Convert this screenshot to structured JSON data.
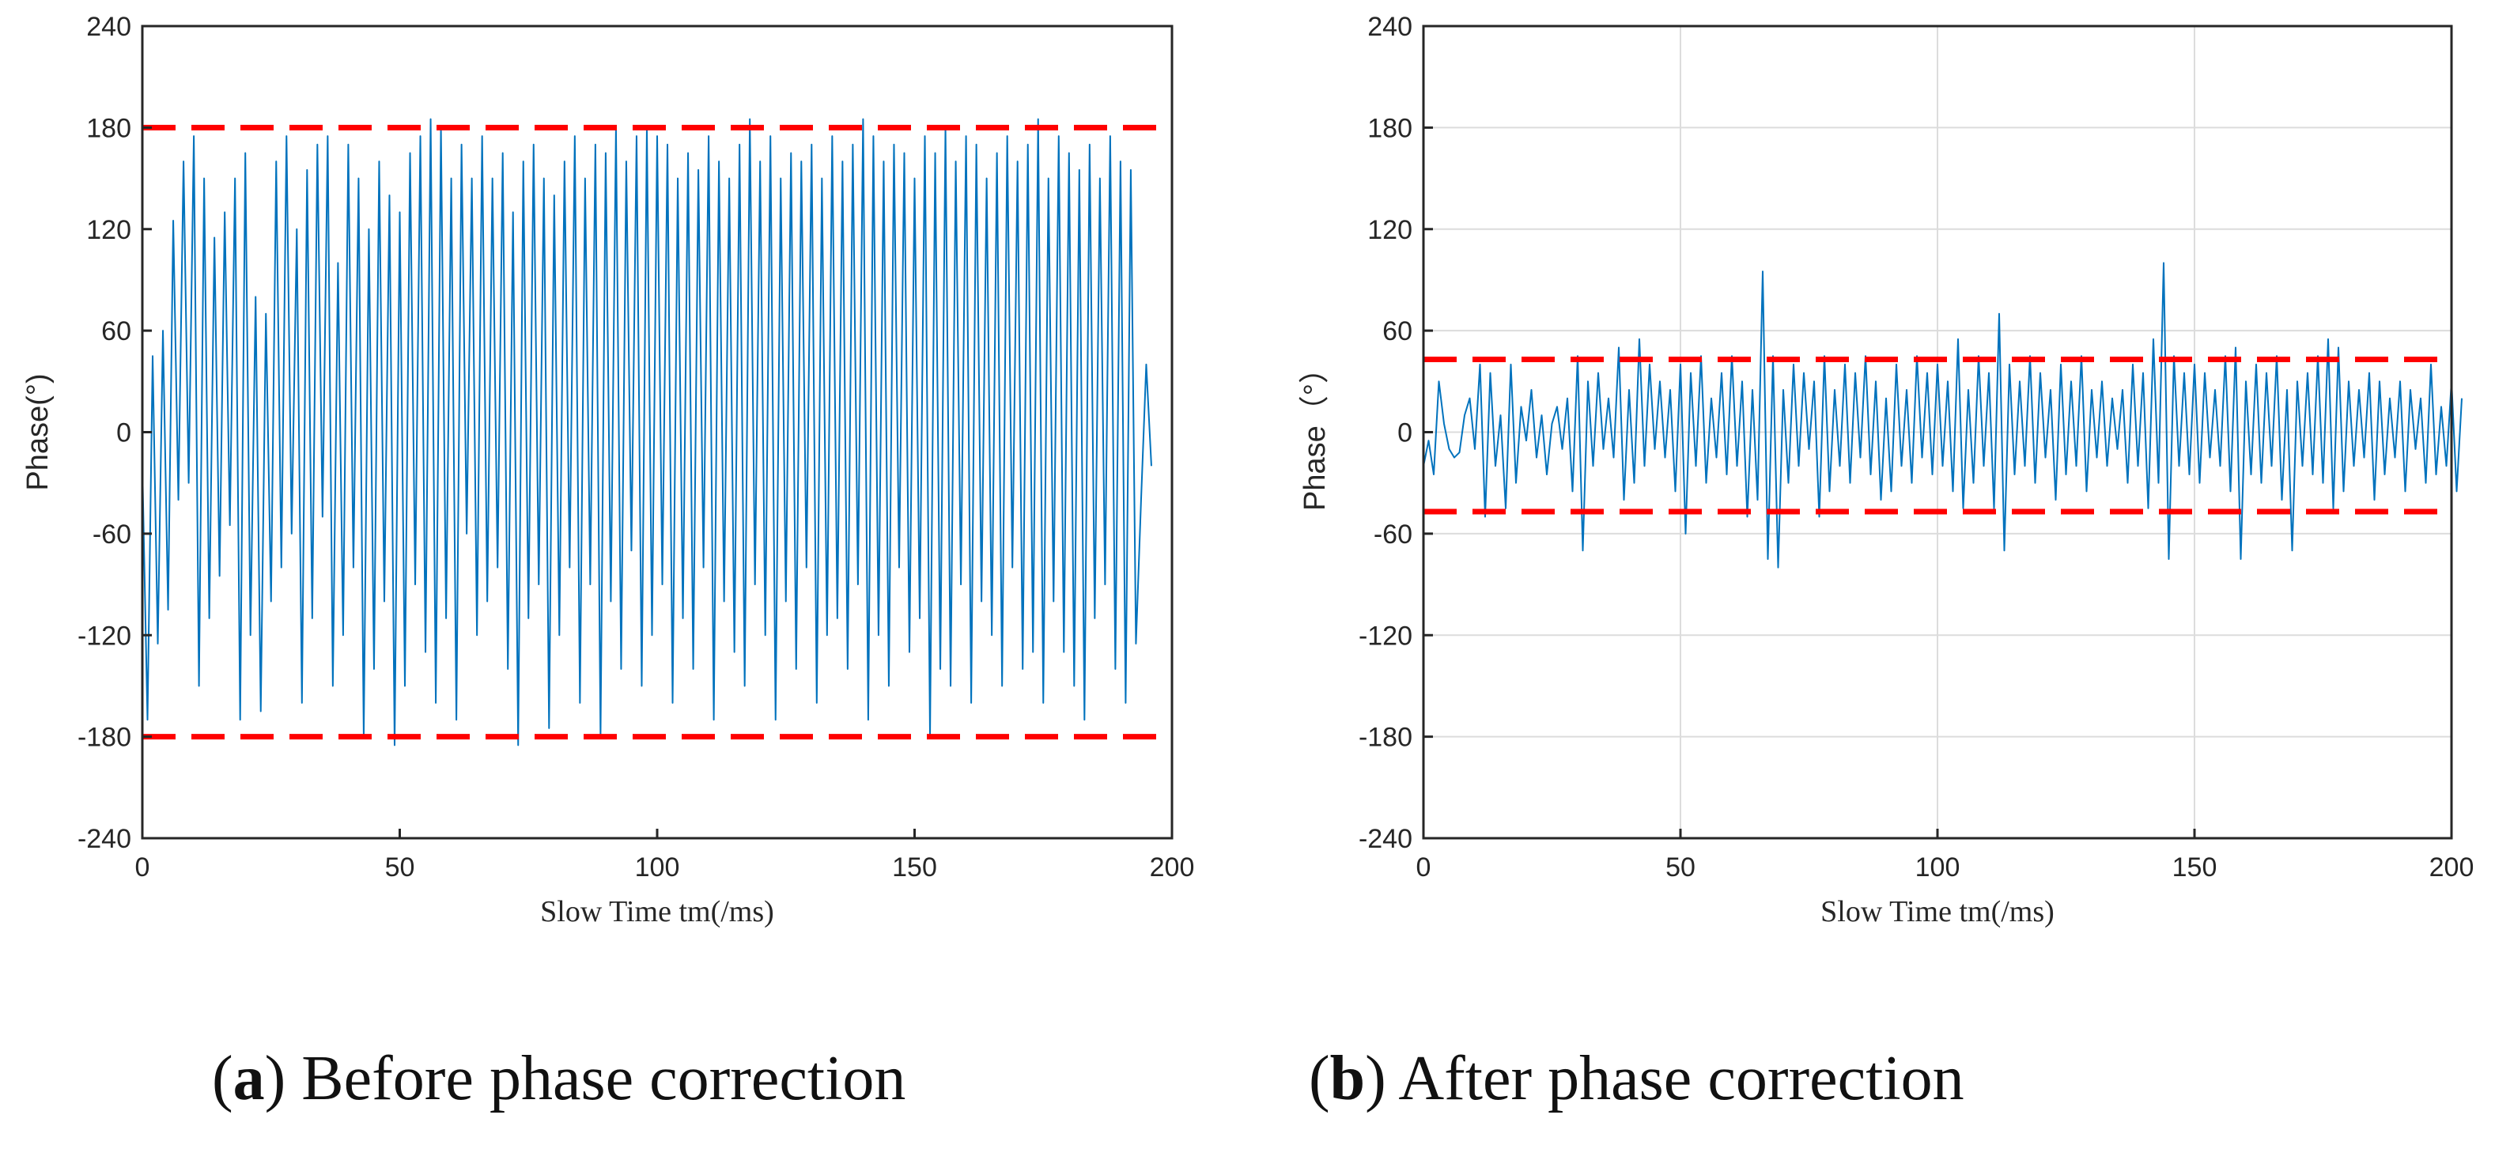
{
  "chart_data": [
    {
      "type": "line",
      "panel": "a",
      "caption_letter": "a",
      "caption_text": "Before phase correction",
      "xlabel": "Slow Time tm(/ms)",
      "ylabel": "Phase(°)",
      "xlim": [
        0,
        200
      ],
      "ylim": [
        -240,
        240
      ],
      "xticks": [
        0,
        50,
        100,
        150,
        200
      ],
      "yticks": [
        240,
        180,
        120,
        60,
        0,
        -60,
        -120,
        -180,
        -240
      ],
      "grid": false,
      "series": [
        {
          "name": "phase",
          "color": "#0072BD",
          "x_step": 1,
          "values": [
            -20,
            -170,
            45,
            -125,
            60,
            -105,
            125,
            -40,
            160,
            -30,
            175,
            -150,
            150,
            -110,
            115,
            -85,
            130,
            -55,
            150,
            -170,
            165,
            -120,
            80,
            -165,
            70,
            -100,
            160,
            -80,
            175,
            -60,
            120,
            -160,
            155,
            -110,
            170,
            -50,
            175,
            -150,
            100,
            -120,
            170,
            -80,
            150,
            -180,
            120,
            -140,
            160,
            -100,
            140,
            -185,
            130,
            -150,
            165,
            -90,
            175,
            -130,
            185,
            -160,
            180,
            -110,
            150,
            -170,
            170,
            -60,
            150,
            -120,
            175,
            -100,
            150,
            -80,
            165,
            -140,
            130,
            -185,
            160,
            -110,
            170,
            -90,
            150,
            -175,
            140,
            -120,
            160,
            -80,
            175,
            -160,
            150,
            -90,
            170,
            -180,
            165,
            -100,
            180,
            -140,
            160,
            -70,
            175,
            -150,
            180,
            -120,
            175,
            -90,
            170,
            -160,
            150,
            -110,
            165,
            -140,
            155,
            -80,
            175,
            -170,
            160,
            -100,
            150,
            -130,
            170,
            -150,
            185,
            -90,
            160,
            -120,
            175,
            -170,
            150,
            -100,
            165,
            -140,
            160,
            -80,
            170,
            -160,
            150,
            -120,
            175,
            -110,
            160,
            -140,
            170,
            -90,
            185,
            -170,
            175,
            -120,
            160,
            -150,
            170,
            -80,
            165,
            -130,
            150,
            -110,
            175,
            -180,
            165,
            -140,
            180,
            -150,
            160,
            -90,
            175,
            -160,
            170,
            -100,
            150,
            -120,
            165,
            -150,
            175,
            -80,
            160,
            -140,
            170,
            -130,
            185,
            -160,
            150,
            -100,
            175,
            -130,
            165,
            -150,
            155,
            -170,
            170,
            -110,
            150,
            -90,
            175,
            -140,
            160,
            -160,
            155,
            -125,
            -40,
            40,
            -20
          ]
        },
        {
          "name": "upper bound",
          "color": "#FF0000",
          "style": "dashed",
          "y": 180
        },
        {
          "name": "lower bound",
          "color": "#FF0000",
          "style": "dashed",
          "y": -180
        }
      ]
    },
    {
      "type": "line",
      "panel": "b",
      "caption_letter": "b",
      "caption_text": "After phase correction",
      "xlabel": "Slow Time tm(/ms)",
      "ylabel": "Phase（°）",
      "xlim": [
        0,
        200
      ],
      "ylim": [
        -240,
        240
      ],
      "xticks": [
        0,
        50,
        100,
        150,
        200
      ],
      "yticks": [
        240,
        180,
        120,
        60,
        0,
        -60,
        -120,
        -180,
        -240
      ],
      "grid": true,
      "series": [
        {
          "name": "phase",
          "color": "#0072BD",
          "x_step": 1,
          "values": [
            -20,
            -5,
            -25,
            30,
            5,
            -10,
            -15,
            -12,
            10,
            20,
            -10,
            40,
            -50,
            35,
            -20,
            10,
            -45,
            40,
            -30,
            15,
            -5,
            25,
            -15,
            10,
            -25,
            5,
            15,
            -10,
            20,
            -35,
            45,
            -70,
            30,
            -20,
            35,
            -10,
            20,
            -15,
            50,
            -40,
            25,
            -30,
            55,
            -20,
            40,
            -10,
            30,
            -15,
            25,
            -35,
            40,
            -60,
            35,
            -20,
            45,
            -30,
            20,
            -15,
            35,
            -25,
            45,
            -20,
            30,
            -50,
            25,
            -40,
            95,
            -75,
            45,
            -80,
            25,
            -30,
            40,
            -20,
            35,
            -10,
            30,
            -50,
            45,
            -35,
            25,
            -20,
            40,
            -30,
            35,
            -15,
            45,
            -25,
            30,
            -40,
            20,
            -35,
            40,
            -20,
            25,
            -30,
            45,
            -15,
            35,
            -25,
            40,
            -20,
            30,
            -35,
            55,
            -45,
            25,
            -30,
            45,
            -20,
            35,
            -45,
            70,
            -70,
            40,
            -25,
            30,
            -20,
            45,
            -30,
            35,
            -15,
            25,
            -40,
            40,
            -25,
            30,
            -20,
            45,
            -35,
            25,
            -15,
            30,
            -20,
            20,
            -10,
            25,
            -30,
            40,
            -20,
            35,
            -45,
            55,
            -30,
            100,
            -75,
            45,
            -20,
            35,
            -25,
            40,
            -30,
            35,
            -15,
            25,
            -20,
            45,
            -35,
            50,
            -75,
            30,
            -25,
            40,
            -30,
            35,
            -20,
            45,
            -40,
            25,
            -70,
            30,
            -20,
            35,
            -25,
            45,
            -30,
            55,
            -45,
            50,
            -35,
            30,
            -20,
            25,
            -15,
            35,
            -40,
            30,
            -25,
            20,
            -15,
            30,
            -35,
            25,
            -10,
            20,
            -30,
            40,
            -25,
            15,
            -20,
            30,
            -35,
            20
          ]
        },
        {
          "name": "upper bound",
          "color": "#FF0000",
          "style": "dashed",
          "y": 43
        },
        {
          "name": "lower bound",
          "color": "#FF0000",
          "style": "dashed",
          "y": -47
        }
      ]
    }
  ]
}
